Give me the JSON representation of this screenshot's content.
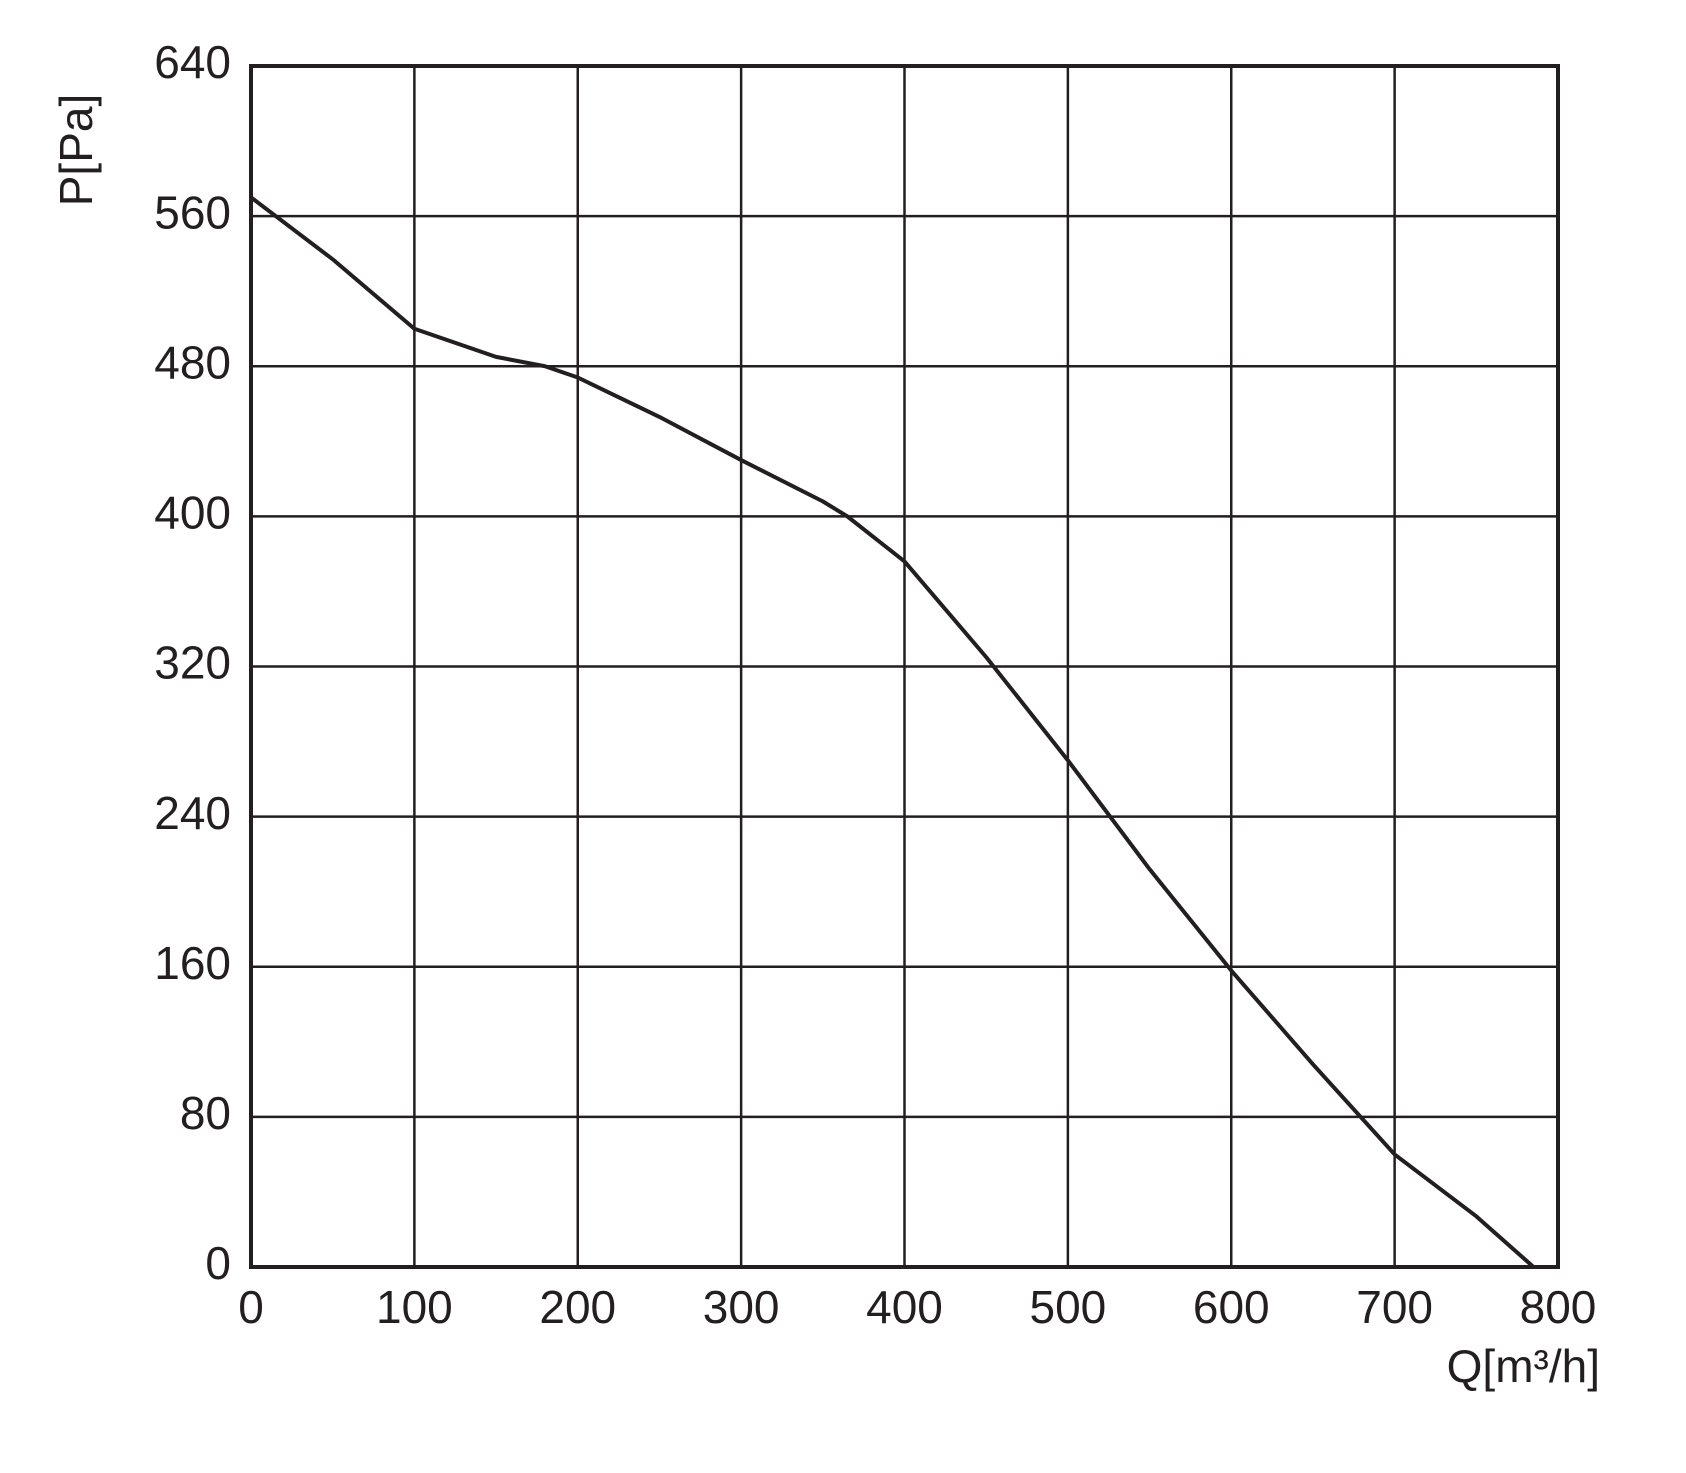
{
  "chart_data": {
    "type": "line",
    "x_label": "Q[m³/h]",
    "y_label": "P[Pa]",
    "x": [
      0,
      50,
      100,
      150,
      180,
      200,
      250,
      300,
      350,
      365,
      400,
      450,
      500,
      550,
      600,
      650,
      700,
      750,
      785
    ],
    "series": [
      {
        "color": "#231f20",
        "values": [
          570,
          537,
          500,
          485,
          480,
          474,
          453,
          430,
          408,
          400,
          376,
          325,
          270,
          212,
          158,
          108,
          60,
          27,
          0
        ]
      }
    ],
    "xlim": [
      0,
      800
    ],
    "xticks": [
      0,
      100,
      200,
      300,
      400,
      500,
      600,
      700,
      800
    ],
    "ylim": [
      0,
      640
    ],
    "yticks": [
      0,
      80,
      160,
      240,
      320,
      400,
      480,
      560,
      640
    ],
    "grid": true
  }
}
